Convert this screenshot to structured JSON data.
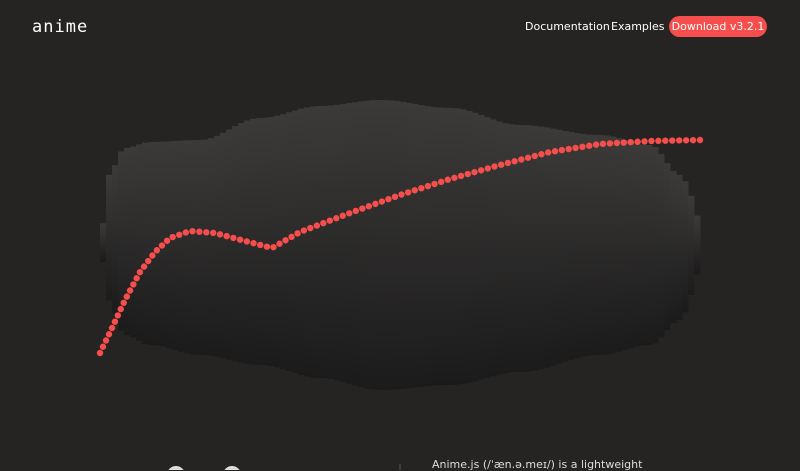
{
  "header": {
    "logo": "anime",
    "nav": [
      "Documentation",
      "Examples"
    ],
    "download_button": "Download v3.2.1"
  },
  "intro": {
    "text": "Anime.js (/ˈæn.ə.meɪ/) is a lightweight"
  }
}
